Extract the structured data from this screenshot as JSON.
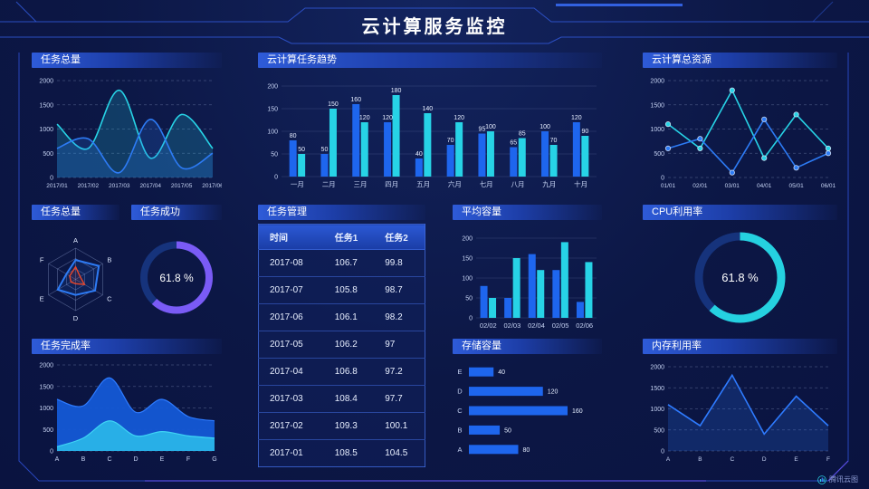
{
  "header": {
    "title": "云计算服务监控"
  },
  "watermark": {
    "label": "腾讯云图"
  },
  "colors": {
    "background": "#0c1745",
    "frame_blue": "#3158d8",
    "accent_purple": "#5a4de0",
    "series_blue": "#1e66ee",
    "series_cyan": "#27d3e6",
    "gauge_purple": "#7a5bf5",
    "gauge_cyan": "#25d1e0",
    "radar_red": "#e8472b"
  },
  "chart_data": [
    {
      "id": "task-total-line",
      "type": "line",
      "title": "任务总量",
      "smooth": true,
      "x": [
        "2017/01",
        "2017/02",
        "2017/03",
        "2017/04",
        "2017/05",
        "2017/06"
      ],
      "ylim": [
        0,
        2000
      ],
      "yticks": [
        0,
        500,
        1000,
        1500,
        2000
      ],
      "grid": "dashed",
      "series": [
        {
          "name": "series-cyan",
          "color": "#27d3e6",
          "area": true,
          "values": [
            1100,
            600,
            1800,
            400,
            1300,
            600
          ]
        },
        {
          "name": "series-blue",
          "color": "#2d7bf5",
          "area": true,
          "values": [
            600,
            800,
            100,
            1200,
            200,
            500
          ]
        }
      ]
    },
    {
      "id": "task-trend-bars",
      "type": "bar",
      "title": "云计算任务趋势",
      "labels": true,
      "categories": [
        "一月",
        "二月",
        "三月",
        "四月",
        "五月",
        "六月",
        "七月",
        "八月",
        "九月",
        "十月"
      ],
      "ylim": [
        0,
        200
      ],
      "yticks": [
        0,
        50,
        100,
        150,
        200
      ],
      "series": [
        {
          "name": "任务1",
          "color": "#1e66ee",
          "values": [
            80,
            50,
            160,
            120,
            40,
            70,
            95,
            65,
            100,
            120
          ]
        },
        {
          "name": "任务2",
          "color": "#27d3e6",
          "values": [
            50,
            150,
            120,
            180,
            140,
            120,
            100,
            85,
            70,
            90
          ]
        }
      ]
    },
    {
      "id": "total-resources-line",
      "type": "line",
      "title": "云计算总资源",
      "smooth": false,
      "markers": true,
      "x": [
        "01/01",
        "02/01",
        "03/01",
        "04/01",
        "05/01",
        "06/01"
      ],
      "ylim": [
        0,
        2000
      ],
      "yticks": [
        0,
        500,
        1000,
        1500,
        2000
      ],
      "grid": "dashed",
      "series": [
        {
          "name": "series-cyan",
          "color": "#27d3e6",
          "values": [
            1100,
            600,
            1800,
            400,
            1300,
            600
          ]
        },
        {
          "name": "series-blue",
          "color": "#2d7bf5",
          "values": [
            600,
            800,
            100,
            1200,
            200,
            500
          ]
        }
      ]
    },
    {
      "id": "task-radar",
      "type": "radar",
      "title": "任务总量",
      "indicators": [
        "A",
        "B",
        "C",
        "D",
        "E",
        "F"
      ],
      "series": [
        {
          "name": "blue",
          "color": "#2d7bf5",
          "values": [
            0.62,
            0.86,
            0.72,
            0.5,
            0.66,
            0.34
          ]
        },
        {
          "name": "red",
          "color": "#e8472b",
          "values": [
            0.4,
            0.17,
            0.33,
            0.14,
            0.17,
            0.22
          ]
        }
      ]
    },
    {
      "id": "task-success-gauge",
      "type": "gauge",
      "title": "任务成功",
      "value": "61.8",
      "unit": "%",
      "color": "#7a5bf5",
      "track": "#16337c"
    },
    {
      "id": "task-table",
      "type": "table",
      "title": "任务管理",
      "columns": [
        "时间",
        "任务1",
        "任务2"
      ],
      "rows": [
        [
          "2017-08",
          "106.7",
          "99.8"
        ],
        [
          "2017-07",
          "105.8",
          "98.7"
        ],
        [
          "2017-06",
          "106.1",
          "98.2"
        ],
        [
          "2017-05",
          "106.2",
          "97"
        ],
        [
          "2017-04",
          "106.8",
          "97.2"
        ],
        [
          "2017-03",
          "108.4",
          "97.7"
        ],
        [
          "2017-02",
          "109.3",
          "100.1"
        ],
        [
          "2017-01",
          "108.5",
          "104.5"
        ]
      ]
    },
    {
      "id": "avg-capacity-bars",
      "type": "bar",
      "title": "平均容量",
      "labels": false,
      "categories": [
        "02/02",
        "02/03",
        "02/04",
        "02/05",
        "02/06"
      ],
      "ylim": [
        0,
        200
      ],
      "yticks": [
        0,
        50,
        100,
        150,
        200
      ],
      "series": [
        {
          "name": "series-blue",
          "color": "#1e66ee",
          "values": [
            80,
            50,
            160,
            120,
            40
          ]
        },
        {
          "name": "series-cyan",
          "color": "#27d3e6",
          "values": [
            50,
            150,
            120,
            190,
            140
          ]
        }
      ]
    },
    {
      "id": "cpu-usage-gauge",
      "type": "gauge",
      "title": "CPU利用率",
      "value": "61.8",
      "unit": "%",
      "color": "#25d1e0",
      "track": "#16337c"
    },
    {
      "id": "completion-area",
      "type": "stacked_area",
      "title": "任务完成率",
      "x": [
        "A",
        "B",
        "C",
        "D",
        "E",
        "F",
        "G"
      ],
      "ylim": [
        0,
        2000
      ],
      "yticks": [
        0,
        500,
        1000,
        1500,
        2000
      ],
      "grid": "dashed",
      "series": [
        {
          "name": "blue",
          "color": "#1459d6",
          "line": "#2e7bff",
          "values": [
            1200,
            1050,
            1700,
            900,
            1200,
            800,
            700
          ]
        },
        {
          "name": "cyan",
          "color": "#29b4e8",
          "line": "#3fd4f5",
          "values": [
            100,
            300,
            700,
            350,
            450,
            350,
            300
          ]
        }
      ]
    },
    {
      "id": "storage-hbars",
      "type": "hbar",
      "title": "存储容量",
      "categories": [
        "E",
        "D",
        "C",
        "B",
        "A"
      ],
      "values": [
        40,
        120,
        160,
        50,
        80
      ],
      "color": "#1e66ee",
      "xmax": 160
    },
    {
      "id": "memory-line",
      "type": "line",
      "title": "内存利用率",
      "smooth": false,
      "x": [
        "A",
        "B",
        "C",
        "D",
        "E",
        "F"
      ],
      "ylim": [
        0,
        2000
      ],
      "yticks": [
        0,
        500,
        1000,
        1500,
        2000
      ],
      "grid": "dashed",
      "series": [
        {
          "name": "series-blue",
          "color": "#2e7bff",
          "area": true,
          "values": [
            1100,
            600,
            1800,
            400,
            1300,
            600
          ]
        }
      ]
    }
  ]
}
